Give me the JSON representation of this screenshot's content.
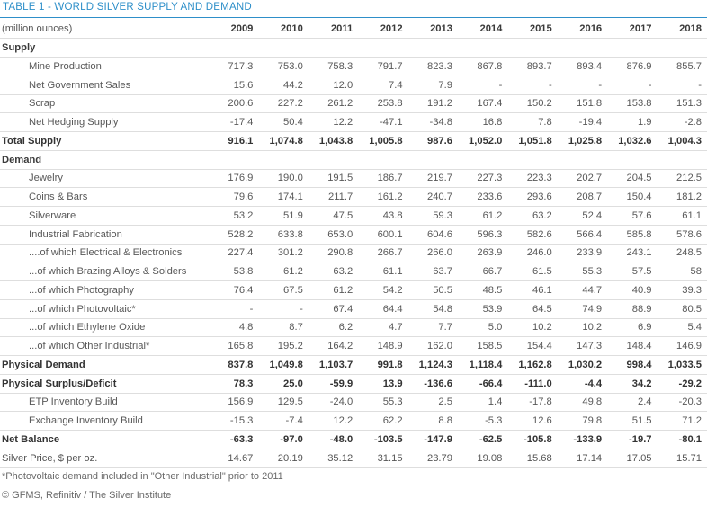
{
  "title": "TABLE 1 - WORLD SILVER SUPPLY AND DEMAND",
  "header": {
    "unit_label": "(million ounces)",
    "years": [
      "2009",
      "2010",
      "2011",
      "2012",
      "2013",
      "2014",
      "2015",
      "2016",
      "2017",
      "2018"
    ]
  },
  "rows": [
    {
      "label": "Supply",
      "kind": "section",
      "values": []
    },
    {
      "label": "Mine Production",
      "kind": "sub",
      "values": [
        "717.3",
        "753.0",
        "758.3",
        "791.7",
        "823.3",
        "867.8",
        "893.7",
        "893.4",
        "876.9",
        "855.7"
      ]
    },
    {
      "label": "Net Government Sales",
      "kind": "sub",
      "values": [
        "15.6",
        "44.2",
        "12.0",
        "7.4",
        "7.9",
        "-",
        "-",
        "-",
        "-",
        "-"
      ]
    },
    {
      "label": "Scrap",
      "kind": "sub",
      "values": [
        "200.6",
        "227.2",
        "261.2",
        "253.8",
        "191.2",
        "167.4",
        "150.2",
        "151.8",
        "153.8",
        "151.3"
      ]
    },
    {
      "label": "Net Hedging Supply",
      "kind": "sub",
      "values": [
        "-17.4",
        "50.4",
        "12.2",
        "-47.1",
        "-34.8",
        "16.8",
        "7.8",
        "-19.4",
        "1.9",
        "-2.8"
      ]
    },
    {
      "label": "Total Supply",
      "kind": "bold",
      "values": [
        "916.1",
        "1,074.8",
        "1,043.8",
        "1,005.8",
        "987.6",
        "1,052.0",
        "1,051.8",
        "1,025.8",
        "1,032.6",
        "1,004.3"
      ]
    },
    {
      "label": "Demand",
      "kind": "section",
      "values": []
    },
    {
      "label": "Jewelry",
      "kind": "sub",
      "values": [
        "176.9",
        "190.0",
        "191.5",
        "186.7",
        "219.7",
        "227.3",
        "223.3",
        "202.7",
        "204.5",
        "212.5"
      ]
    },
    {
      "label": "Coins & Bars",
      "kind": "sub",
      "values": [
        "79.6",
        "174.1",
        "211.7",
        "161.2",
        "240.7",
        "233.6",
        "293.6",
        "208.7",
        "150.4",
        "181.2"
      ]
    },
    {
      "label": "Silverware",
      "kind": "sub",
      "values": [
        "53.2",
        "51.9",
        "47.5",
        "43.8",
        "59.3",
        "61.2",
        "63.2",
        "52.4",
        "57.6",
        "61.1"
      ]
    },
    {
      "label": "Industrial Fabrication",
      "kind": "sub",
      "values": [
        "528.2",
        "633.8",
        "653.0",
        "600.1",
        "604.6",
        "596.3",
        "582.6",
        "566.4",
        "585.8",
        "578.6"
      ]
    },
    {
      "label": "....of which Electrical & Electronics",
      "kind": "sub",
      "values": [
        "227.4",
        "301.2",
        "290.8",
        "266.7",
        "266.0",
        "263.9",
        "246.0",
        "233.9",
        "243.1",
        "248.5"
      ]
    },
    {
      "label": "...of which Brazing Alloys & Solders",
      "kind": "sub",
      "values": [
        "53.8",
        "61.2",
        "63.2",
        "61.1",
        "63.7",
        "66.7",
        "61.5",
        "55.3",
        "57.5",
        "58"
      ]
    },
    {
      "label": "...of which Photography",
      "kind": "sub",
      "values": [
        "76.4",
        "67.5",
        "61.2",
        "54.2",
        "50.5",
        "48.5",
        "46.1",
        "44.7",
        "40.9",
        "39.3"
      ]
    },
    {
      "label": "...of which Photovoltaic*",
      "kind": "sub",
      "values": [
        "-",
        "-",
        "67.4",
        "64.4",
        "54.8",
        "53.9",
        "64.5",
        "74.9",
        "88.9",
        "80.5"
      ]
    },
    {
      "label": "...of which Ethylene Oxide",
      "kind": "sub",
      "values": [
        "4.8",
        "8.7",
        "6.2",
        "4.7",
        "7.7",
        "5.0",
        "10.2",
        "10.2",
        "6.9",
        "5.4"
      ]
    },
    {
      "label": "...of which Other Industrial*",
      "kind": "sub",
      "values": [
        "165.8",
        "195.2",
        "164.2",
        "148.9",
        "162.0",
        "158.5",
        "154.4",
        "147.3",
        "148.4",
        "146.9"
      ]
    },
    {
      "label": "Physical Demand",
      "kind": "bold",
      "values": [
        "837.8",
        "1,049.8",
        "1,103.7",
        "991.8",
        "1,124.3",
        "1,118.4",
        "1,162.8",
        "1,030.2",
        "998.4",
        "1,033.5"
      ]
    },
    {
      "label": "Physical Surplus/Deficit",
      "kind": "bold",
      "values": [
        "78.3",
        "25.0",
        "-59.9",
        "13.9",
        "-136.6",
        "-66.4",
        "-111.0",
        "-4.4",
        "34.2",
        "-29.2"
      ]
    },
    {
      "label": "ETP Inventory Build",
      "kind": "sub",
      "values": [
        "156.9",
        "129.5",
        "-24.0",
        "55.3",
        "2.5",
        "1.4",
        "-17.8",
        "49.8",
        "2.4",
        "-20.3"
      ]
    },
    {
      "label": "Exchange Inventory Build",
      "kind": "sub",
      "values": [
        "-15.3",
        "-7.4",
        "12.2",
        "62.2",
        "8.8",
        "-5.3",
        "12.6",
        "79.8",
        "51.5",
        "71.2"
      ]
    },
    {
      "label": "Net Balance",
      "kind": "bold",
      "values": [
        "-63.3",
        "-97.0",
        "-48.0",
        "-103.5",
        "-147.9",
        "-62.5",
        "-105.8",
        "-133.9",
        "-19.7",
        "-80.1"
      ]
    },
    {
      "label": "Silver Price, $ per oz.",
      "kind": "plain",
      "values": [
        "14.67",
        "20.19",
        "35.12",
        "31.15",
        "23.79",
        "19.08",
        "15.68",
        "17.14",
        "17.05",
        "15.71"
      ]
    }
  ],
  "footnote": "*Photovoltaic demand included in \"Other Industrial\" prior to 2011",
  "source": "© GFMS, Refinitiv / The Silver Institute"
}
